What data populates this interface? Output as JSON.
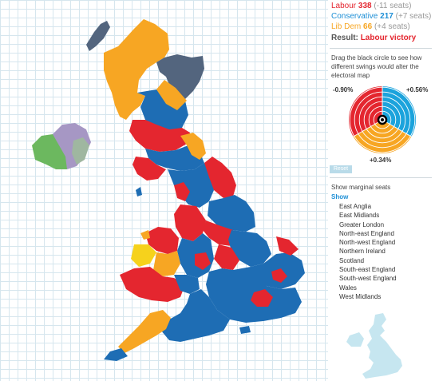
{
  "results": {
    "labour": {
      "name": "Labour",
      "seats": "338",
      "change": "(-11 seats)"
    },
    "conservative": {
      "name": "Conservative",
      "seats": "217",
      "change": "(+7 seats)"
    },
    "libdem": {
      "name": "Lib Dem",
      "seats": "66",
      "change": "(+4 seats)"
    },
    "result_label": "Result:",
    "result_value": "Labour victory"
  },
  "swing": {
    "instructions": "Drag the black circle to see how different swings would alter the electoral map",
    "labour_swing": "-0.90%",
    "conservative_swing": "+0.56%",
    "libdem_swing": "+0.34%",
    "reset_label": "Reset"
  },
  "marginal": {
    "title": "Show marginal seats",
    "show_label": "Show",
    "regions": [
      "East Anglia",
      "East Midlands",
      "Greater London",
      "North-east England",
      "North-west England",
      "Northern Ireland",
      "Scotland",
      "South-east England",
      "South-west England",
      "Wales",
      "West Midlands"
    ]
  },
  "colors": {
    "labour": "#e4262f",
    "conservative": "#1e6db4",
    "libdem": "#f7a623",
    "snp": "#53657e",
    "plaid": "#f6d21c",
    "northern_ireland_a": "#6cb85f",
    "northern_ireland_b": "#a697c4",
    "grid": "#d6e6ee",
    "mini_map": "#c6e6f0"
  }
}
